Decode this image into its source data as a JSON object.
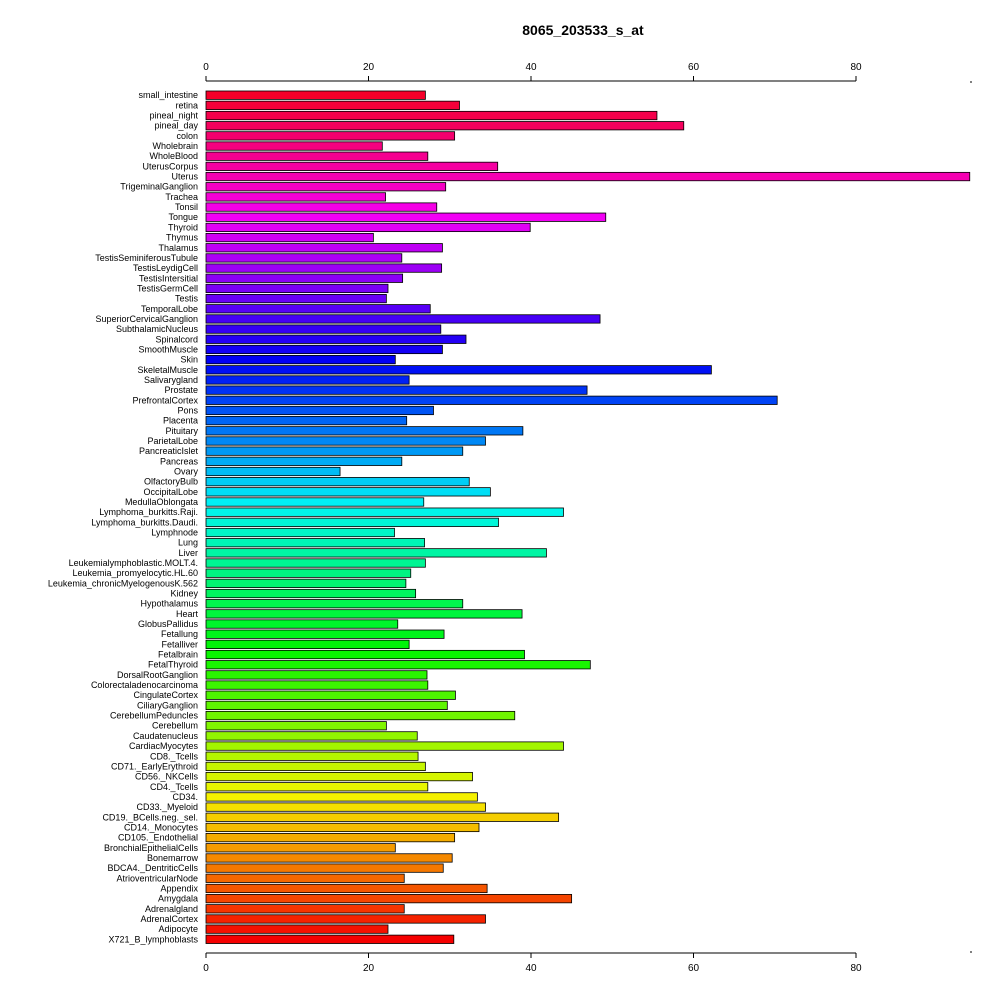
{
  "chart_data": {
    "type": "bar",
    "orientation": "horizontal",
    "title": "8065_203533_s_at",
    "xlabel": "",
    "ylabel": "",
    "xlim": [
      0,
      94
    ],
    "ticks": [
      0,
      20,
      40,
      60,
      80
    ],
    "tick_labels": [
      "0",
      "20",
      "40",
      "60",
      "80"
    ],
    "tick_positions": [
      "top",
      "bottom"
    ],
    "grid": false,
    "color_scheme": "rainbow",
    "categories": [
      "small_intestine",
      "retina",
      "pineal_night",
      "pineal_day",
      "colon",
      "Wholebrain",
      "WholeBlood",
      "UterusCorpus",
      "Uterus",
      "TrigeminalGanglion",
      "Trachea",
      "Tonsil",
      "Tongue",
      "Thyroid",
      "Thymus",
      "Thalamus",
      "TestisSeminiferousTubule",
      "TestisLeydigCell",
      "TestisIntersitial",
      "TestisGermCell",
      "Testis",
      "TemporalLobe",
      "SuperiorCervicalGanglion",
      "SubthalamicNucleus",
      "Spinalcord",
      "SmoothMuscle",
      "Skin",
      "SkeletalMuscle",
      "Salivarygland",
      "Prostate",
      "PrefrontalCortex",
      "Pons",
      "Placenta",
      "Pituitary",
      "ParietalLobe",
      "PancreaticIslet",
      "Pancreas",
      "Ovary",
      "OlfactoryBulb",
      "OccipitalLobe",
      "MedullaOblongata",
      "Lymphoma_burkitts.Raji.",
      "Lymphoma_burkitts.Daudi.",
      "Lymphnode",
      "Lung",
      "Liver",
      "Leukemialymphoblastic.MOLT.4.",
      "Leukemia_promyelocytic.HL.60",
      "Leukemia_chronicMyelogenousK.562",
      "Kidney",
      "Hypothalamus",
      "Heart",
      "GlobusPallidus",
      "Fetallung",
      "Fetalliver",
      "Fetalbrain",
      "FetalThyroid",
      "DorsalRootGanglion",
      "Colorectaladenocarcinoma",
      "CingulateCortex",
      "CiliaryGanglion",
      "CerebellumPeduncles",
      "Cerebellum",
      "Caudatenucleus",
      "CardiacMyocytes",
      "CD8._Tcells",
      "CD71._EarlyErythroid",
      "CD56._NKCells",
      "CD4._Tcells",
      "CD34.",
      "CD33._Myeloid",
      "CD19._BCells.neg._sel.",
      "CD14._Monocytes",
      "CD105._Endothelial",
      "BronchialEpithelialCells",
      "Bonemarrow",
      "BDCA4._DentriticCells",
      "AtrioventricularNode",
      "Appendix",
      "Amygdala",
      "Adrenalgland",
      "AdrenalCortex",
      "Adipocyte",
      "X721_B_lymphoblasts"
    ],
    "values": [
      27.0,
      31.2,
      55.5,
      58.8,
      30.6,
      21.7,
      27.3,
      35.9,
      94.0,
      29.5,
      22.1,
      28.4,
      49.2,
      39.9,
      20.6,
      29.1,
      24.1,
      29.0,
      24.2,
      22.4,
      22.2,
      27.6,
      48.5,
      28.9,
      32.0,
      29.1,
      23.3,
      62.2,
      25.0,
      46.9,
      70.3,
      28.0,
      24.7,
      39.0,
      34.4,
      31.6,
      24.1,
      16.5,
      32.4,
      35.0,
      26.8,
      44.0,
      36.0,
      23.2,
      26.9,
      41.9,
      27.0,
      25.2,
      24.6,
      25.8,
      31.6,
      38.9,
      23.6,
      29.3,
      25.0,
      39.2,
      47.3,
      27.2,
      27.3,
      30.7,
      29.7,
      38.0,
      22.2,
      26.0,
      44.0,
      26.1,
      27.0,
      32.8,
      27.3,
      33.4,
      34.4,
      43.4,
      33.6,
      30.6,
      23.3,
      30.3,
      29.2,
      24.4,
      34.6,
      45.0,
      24.4,
      34.4,
      22.4,
      30.5
    ]
  }
}
